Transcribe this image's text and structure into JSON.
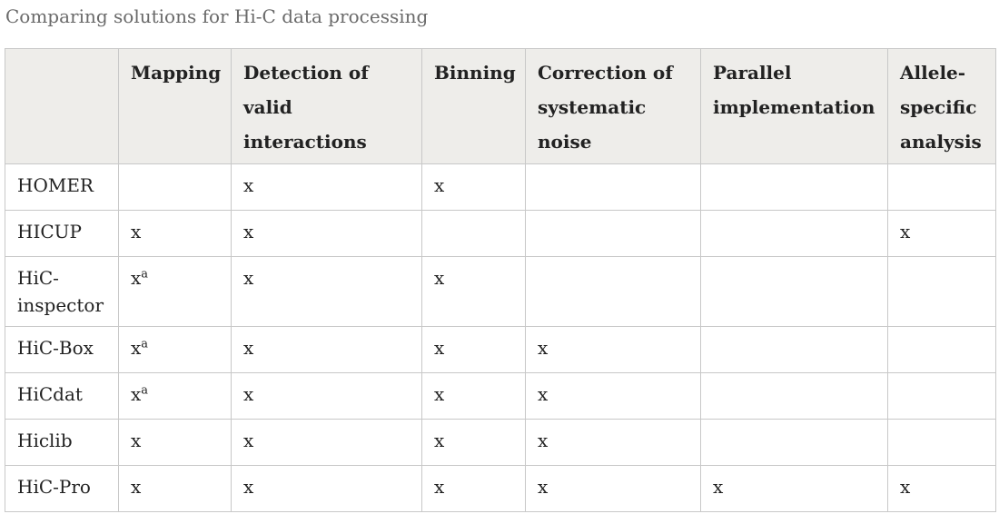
{
  "caption": "Comparing solutions for Hi-C data processing",
  "table": {
    "headers": [
      "",
      "Mapping",
      "Detection of valid interactions",
      "Binning",
      "Correction of systematic noise",
      "Parallel implementation",
      "Allele-specific analysis"
    ],
    "rows": [
      {
        "tool": "HOMER",
        "cells": [
          [
            "",
            ""
          ],
          [
            "x",
            ""
          ],
          [
            "x",
            ""
          ],
          [
            "",
            ""
          ],
          [
            "",
            ""
          ],
          [
            "",
            ""
          ]
        ]
      },
      {
        "tool": "HICUP",
        "cells": [
          [
            "x",
            ""
          ],
          [
            "x",
            ""
          ],
          [
            "",
            ""
          ],
          [
            "",
            ""
          ],
          [
            "",
            ""
          ],
          [
            "x",
            ""
          ]
        ]
      },
      {
        "tool": "HiC-inspector",
        "cells": [
          [
            "x",
            "a"
          ],
          [
            "x",
            ""
          ],
          [
            "x",
            ""
          ],
          [
            "",
            ""
          ],
          [
            "",
            ""
          ],
          [
            "",
            ""
          ]
        ]
      },
      {
        "tool": "HiC-Box",
        "cells": [
          [
            "x",
            "a"
          ],
          [
            "x",
            ""
          ],
          [
            "x",
            ""
          ],
          [
            "x",
            ""
          ],
          [
            "",
            ""
          ],
          [
            "",
            ""
          ]
        ]
      },
      {
        "tool": "HiCdat",
        "cells": [
          [
            "x",
            "a"
          ],
          [
            "x",
            ""
          ],
          [
            "x",
            ""
          ],
          [
            "x",
            ""
          ],
          [
            "",
            ""
          ],
          [
            "",
            ""
          ]
        ]
      },
      {
        "tool": "Hiclib",
        "cells": [
          [
            "x",
            ""
          ],
          [
            "x",
            ""
          ],
          [
            "x",
            ""
          ],
          [
            "x",
            ""
          ],
          [
            "",
            ""
          ],
          [
            "",
            ""
          ]
        ]
      },
      {
        "tool": "HiC-Pro",
        "cells": [
          [
            "x",
            ""
          ],
          [
            "x",
            ""
          ],
          [
            "x",
            ""
          ],
          [
            "x",
            ""
          ],
          [
            "x",
            ""
          ],
          [
            "x",
            ""
          ]
        ]
      }
    ]
  }
}
